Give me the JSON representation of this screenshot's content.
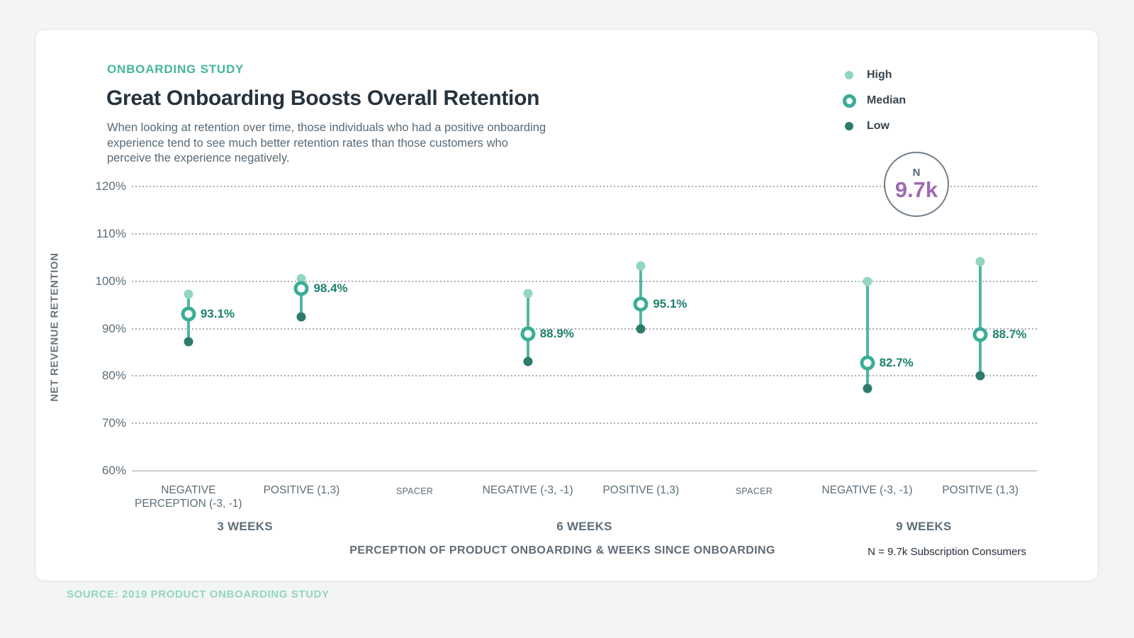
{
  "header": {
    "eyebrow": "ONBOARDING STUDY",
    "title": "Great Onboarding Boosts Overall Retention",
    "subtitle_lines": [
      "When looking at retention over time, those individuals who had a positive onboarding",
      "experience tend to see much better retention rates than those customers who",
      "perceive the experience negatively."
    ]
  },
  "legend": {
    "items": [
      {
        "label": "High",
        "mark": "dot",
        "color": "#92D7BD"
      },
      {
        "label": "Median",
        "mark": "ring",
        "color": "#3BAD96"
      },
      {
        "label": "Low",
        "mark": "dot",
        "color": "#2E7B6B"
      }
    ]
  },
  "badge": {
    "top_label": "N",
    "value": "9.7k"
  },
  "chart_data": {
    "type": "dumbbell-range",
    "title": "Great Onboarding Boosts Overall Retention",
    "ylabel": "NET REVENUE RETENTION",
    "xlabel": "PERCEPTION OF PRODUCT ONBOARDING & WEEKS SINCE ONBOARDING",
    "ylim": [
      60,
      120
    ],
    "y_ticks": [
      120,
      110,
      100,
      90,
      80,
      70,
      60
    ],
    "y_tick_suffix": "%",
    "grid": "dotted-horizontal",
    "legend_position": "top-right",
    "columns": [
      {
        "lines": [
          "NEGATIVE",
          "PERCEPTION (-3, -1)"
        ],
        "type": "data"
      },
      {
        "lines": [
          "POSITIVE (1,3)"
        ],
        "type": "data"
      },
      {
        "lines": [
          "SPACER"
        ],
        "type": "spacer"
      },
      {
        "lines": [
          "NEGATIVE (-3, -1)"
        ],
        "type": "data"
      },
      {
        "lines": [
          "POSITIVE (1,3)"
        ],
        "type": "data"
      },
      {
        "lines": [
          "SPACER"
        ],
        "type": "spacer"
      },
      {
        "lines": [
          "NEGATIVE (-3, -1)"
        ],
        "type": "data"
      },
      {
        "lines": [
          "POSITIVE (1,3)"
        ],
        "type": "data"
      }
    ],
    "groups": [
      {
        "label": "3 WEEKS",
        "series": [
          {
            "column": 0,
            "high": 97.3,
            "median": 93.1,
            "low": 87.3,
            "median_label": "93.1%"
          },
          {
            "column": 1,
            "high": 100.6,
            "median": 98.4,
            "low": 92.4,
            "median_label": "98.4%"
          }
        ]
      },
      {
        "label": "6 WEEKS",
        "series": [
          {
            "column": 3,
            "high": 97.4,
            "median": 88.9,
            "low": 83.0,
            "median_label": "88.9%"
          },
          {
            "column": 4,
            "high": 103.2,
            "median": 95.1,
            "low": 90.0,
            "median_label": "95.1%"
          }
        ]
      },
      {
        "label": "9 WEEKS",
        "series": [
          {
            "column": 6,
            "high": 100.0,
            "median": 82.7,
            "low": 77.4,
            "median_label": "82.7%"
          },
          {
            "column": 7,
            "high": 104.1,
            "median": 88.7,
            "low": 80.1,
            "median_label": "88.7%"
          }
        ]
      }
    ],
    "colors": {
      "high": "#92D7BD",
      "median": "#3BAD96",
      "low": "#2E7B6B",
      "line": "#52B6A1",
      "value_label": "#1D816C"
    }
  },
  "footer": {
    "axis_note": "N = 9.7k Subscription Consumers",
    "source": "SOURCE: 2019 PRODUCT ONBOARDING STUDY"
  },
  "colors": {
    "accent_teal": "#45B69E",
    "badge_value_purple": "#9C69B2",
    "title_text": "#26323D",
    "axis_text": "#5D6D78",
    "source_text": "#93D6BD",
    "card_background": "#FFFFFF",
    "page_background": "#F3F4F5"
  }
}
